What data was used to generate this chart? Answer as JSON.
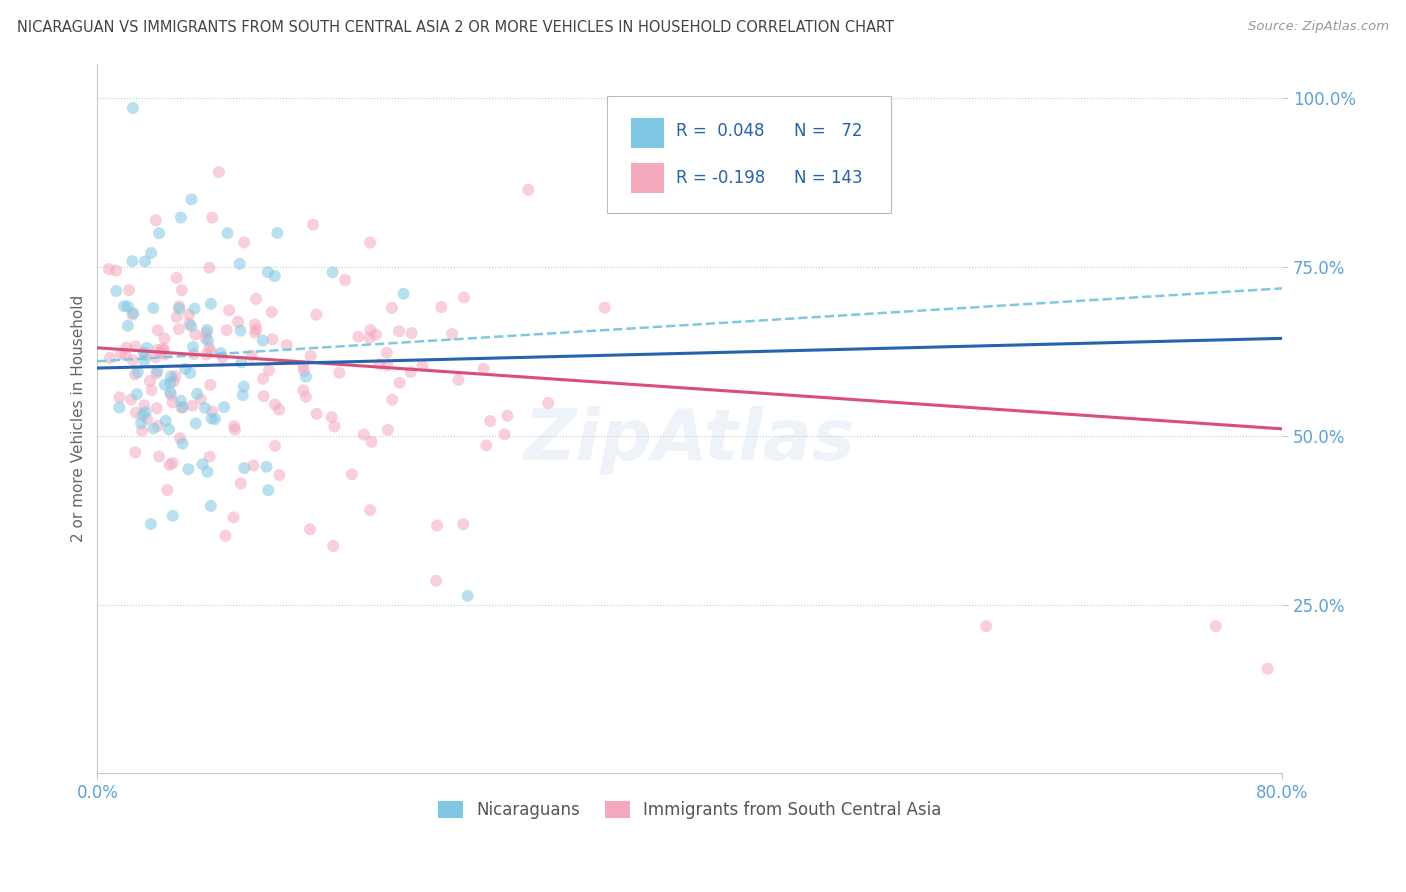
{
  "title": "NICARAGUAN VS IMMIGRANTS FROM SOUTH CENTRAL ASIA 2 OR MORE VEHICLES IN HOUSEHOLD CORRELATION CHART",
  "source": "Source: ZipAtlas.com",
  "ylabel": "2 or more Vehicles in Household",
  "xlim": [
    0.0,
    0.8
  ],
  "ylim": [
    0.0,
    1.05
  ],
  "color_blue": "#7ec8e3",
  "color_pink": "#f4a8bc",
  "line_blue_solid": "#2563ae",
  "line_blue_dash": "#7ec8e3",
  "line_pink": "#d94f7a",
  "background_color": "#ffffff",
  "grid_color": "#c8c8c8",
  "title_color": "#444444",
  "source_color": "#999999",
  "legend_text_color": "#2563ae",
  "axis_tick_color": "#5ba3d9",
  "scatter_alpha": 0.55,
  "marker_size": 75
}
